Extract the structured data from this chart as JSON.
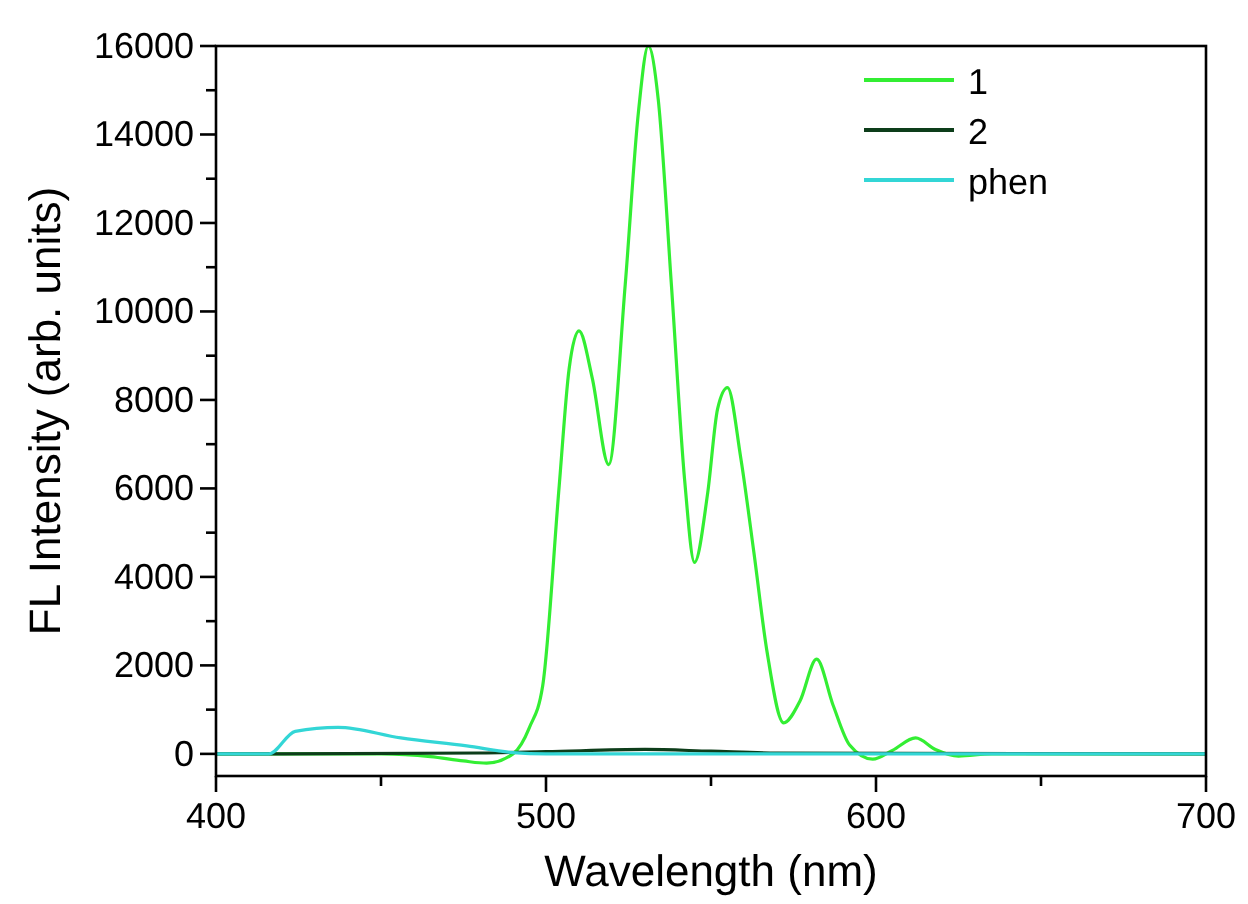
{
  "chart_data": {
    "type": "line",
    "xlabel": "Wavelength (nm)",
    "ylabel": "FL Intensity (arb. units)",
    "xlim": [
      400,
      700
    ],
    "ylim": [
      -500,
      16000
    ],
    "xticks": [
      400,
      {
        "value": 450,
        "label": null
      },
      500,
      {
        "value": 550,
        "label": null
      },
      600,
      {
        "value": 650,
        "label": null
      },
      700
    ],
    "yticks": [
      0,
      {
        "value": 1000,
        "label": null
      },
      2000,
      {
        "value": 3000,
        "label": null
      },
      4000,
      {
        "value": 5000,
        "label": null
      },
      6000,
      {
        "value": 7000,
        "label": null
      },
      8000,
      {
        "value": 9000,
        "label": null
      },
      10000,
      {
        "value": 11000,
        "label": null
      },
      12000,
      {
        "value": 13000,
        "label": null
      },
      14000,
      {
        "value": 15000,
        "label": null
      },
      16000
    ],
    "legend": "top right",
    "grid": false,
    "marker": "none",
    "line_style": "solid",
    "series": [
      {
        "name": "1",
        "color": "#33ee33",
        "x": [
          400,
          450,
          465,
          475,
          482,
          490,
          495,
          499,
          504,
          507,
          510,
          514,
          519,
          524,
          528,
          531,
          534,
          538,
          542,
          545,
          549,
          552,
          555,
          559,
          563,
          567,
          572,
          577,
          582,
          587,
          592,
          599,
          605,
          612,
          618,
          625,
          635,
          700
        ],
        "values": [
          0,
          0,
          -60,
          -160,
          -210,
          0,
          600,
          1540,
          6060,
          8700,
          9560,
          8500,
          6540,
          10600,
          14500,
          16000,
          14800,
          10600,
          6200,
          4330,
          5900,
          7800,
          8280,
          6700,
          4550,
          2300,
          700,
          1200,
          2140,
          1100,
          200,
          -120,
          80,
          360,
          100,
          -50,
          0,
          0
        ]
      },
      {
        "name": "2",
        "color": "#0d3d1a",
        "x": [
          400,
          420,
          480,
          500,
          530,
          550,
          570,
          700
        ],
        "values": [
          0,
          0,
          20,
          50,
          100,
          60,
          20,
          0
        ]
      },
      {
        "name": "phen",
        "color": "#33d6d6",
        "x": [
          400,
          416,
          424,
          437,
          456,
          476,
          490,
          500,
          700
        ],
        "values": [
          0,
          0,
          510,
          600,
          360,
          180,
          30,
          0,
          0
        ]
      }
    ]
  }
}
